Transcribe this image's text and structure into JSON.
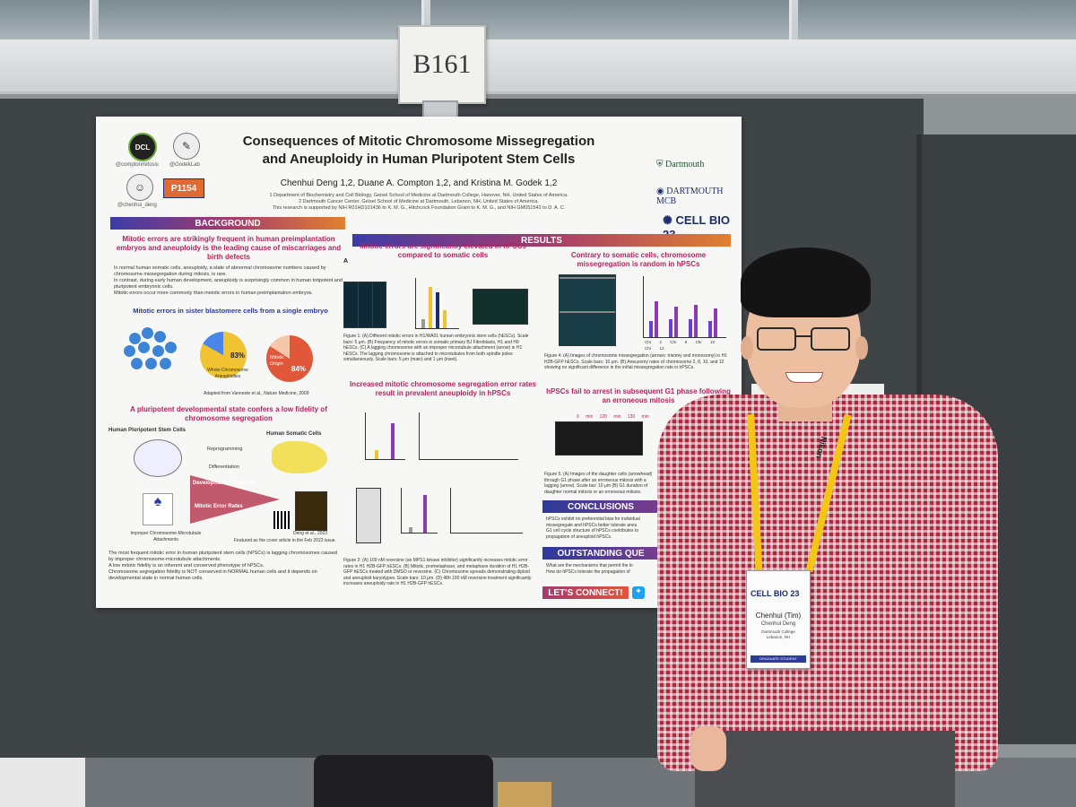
{
  "booth": {
    "number": "B161"
  },
  "poster": {
    "title_line1": "Consequences of Mitotic Chromosome Missegregation",
    "title_line2": "and Aneuploidy in Human Pluripotent Stem Cells",
    "authors": "Chenhui Deng 1,2, Duane A. Compton 1,2, and Kristina M. Godek 1,2",
    "affiliation1": "1 Department of Biochemistry and Cell Biology, Geisel School of Medicine at Dartmouth College, Hanover, NH, United States of America.",
    "affiliation2": "2 Dartmouth Cancer Center, Geisel School of Medicine at Dartmouth, Lebanon, NH, United States of America.",
    "funding": "This research is supported by NIH R01HD101436 to K. M. G., Hitchcock Foundation Grant to K. M. G., and NIH GM051542 to D. A. C.",
    "handle1": "@comptonmitosis",
    "handle2": "@GodekLab",
    "handle3": "@chenhui_deng",
    "poster_id": "P1154",
    "logo1": "DCL",
    "logo_dartmouth": "Dartmouth",
    "logo_mcb": "DARTMOUTH MCB",
    "logo_cellbio": "CELL BIO 23",
    "background_header": "BACKGROUND",
    "results_header": "RESULTS",
    "bg_pink": "Mitotic errors are strikingly frequent in human preimplantation embryos and aneuploidy is the leading cause of miscarriages and birth defects",
    "bg_bullets": [
      "In normal human somatic cells, aneuploidy, a state of abnormal chromosome numbers caused by chromosome missegregation during mitosis, is rare.",
      "In contrast, during early human development, aneuploidy is surprisingly common in human totipotent and pluripotent embryonic cells.",
      "Mitotic errors occur more commonly than meiotic errors in human preimplantation embryos."
    ],
    "bg_blue_title": "Mitotic errors in sister blastomere cells from a single embryo",
    "pie1_pct": "83%",
    "pie1_label": "Whole-Chromosome Aneuploidies",
    "pie2_pct": "84%",
    "pie2_label": "Mitotic Origin",
    "adapted": "Adapted from Vanneste et al., Nature Medicine, 2009",
    "bg_pink2": "A pluripotent developmental state confers a low fidelity of chromosome segregation",
    "hpsc_label": "Human Pluripotent Stem Cells",
    "somatic_label": "Human Somatic Cells",
    "reprogramming": "Reprogramming",
    "differentiation": "Differentiation",
    "dev_potential": "Developmental Potential",
    "mitotic_error_rates": "Mitotic Error Rates",
    "improper": "Improper Chromosome-Microtubule Attachments",
    "deng": "Deng et al., 2023",
    "featured": "Featured as the cover article in the Feb 2023 issue",
    "bottom_bullets": [
      "The most frequent mitotic error in human pluripotent stem cells (hPSCs) is lagging chromosomes caused by improper chromosome-microtubule attachments.",
      "A low mitotic fidelity is an inherent and conserved phenotype of hPSCs.",
      "Chromosome segregation fidelity is NOT conserved in NORMAL human cells and it depends on developmental state in normal human cells."
    ],
    "res1_pink": "Mitotic errors are significantly elevated in hPSCs compared to somatic cells",
    "fig1_caption": "Figure 1: (A) Different mitotic errors in H1/WA01 human embryonic stem cells (hESCs). Scale bars: 5 μm. (B) Frequency of mitotic errors in somatic primary BJ Fibroblasts, H1 and H9 hESCs. (C) A lagging chromosome with an improper microtubule attachment (arrow) in H1 hESCs. The lagging chromosome is attached to microtubules from both spindle poles simultaneously. Scale bars: 5 μm (main) and 1 μm (inset).",
    "res2_pink": "Increased mitotic chromosome segregation error rates result in prevalent aneuploidy in hPSCs",
    "fig2_caption": "Figure 2: (A) 100 nM reversine (an MPS1 kinase inhibitor) significantly increases mitotic error rates in H1 H2B-GFP hESCs. (B) Mitotic, prometaphase, and metaphase duration of H1 H2B-GFP hESCs treated with DMSO or reversine. (C) Chromosome spreads demonstrating diploid and aneuploid karyotypes. Scale bars: 10 μm. (D) 48h 100 nM reversine treatment significantly increases aneuploidy rate in H1 H2B-GFP hESCs.",
    "res3_pink": "Contrary to somatic cells, chromosome missegregation is random in hPSCs",
    "fig4_caption": "Figure 4: (A) Images of chromosome missegregation (arrows: trisomy and monosomy) in H1 H2B-GFP hESCs. Scale bars: 10 μm. (B) Aneusomy rates of chromosome 2, 8, 10, and 12 showing no significant difference in the initial missegregation rate in hPSCs.",
    "res4_pink": "hPSCs fail to arrest in subsequent G1 phase following an erroneous mitosis",
    "fig5_caption": "Figure 5: (A) Images of the daughter cells (arrowhead) through G1 phase after an erroneous mitosis with a lagging (arrow). Scale bar: 10 μm (B) G1 duration of daughter normal mitosis or an erroneous mitosis.",
    "conclusions_header": "CONCLUSIONS",
    "conclusions": [
      "hPSCs exhibit no preferential bias for individual missegregate and hPSCs better tolerate aneu",
      "G1 cell cycle structure of hPSCs contributes to propagation of aneuploid hPSCs."
    ],
    "outstanding_header": "OUTSTANDING QUE",
    "outstanding": [
      "What are the mechanisms that permit the lo",
      "How do hPSCs tolerate the propagation of"
    ],
    "connect": "LET'S CONNECT!",
    "chr_labels": [
      "Chr 2",
      "Chr 8",
      "Chr 10",
      "Chr 12"
    ],
    "percent_labels": [
      "0 min",
      "120 min",
      "130 min"
    ]
  },
  "attendee_badge": {
    "event": "CELL BIO 23",
    "name": "Chenhui (Tim)",
    "name2": "Chenhui Deng",
    "org": "Dartmouth College",
    "city": "Lebanon, NH",
    "role": "GRADUATE STUDENT"
  },
  "lanyard_text": "Nikon"
}
